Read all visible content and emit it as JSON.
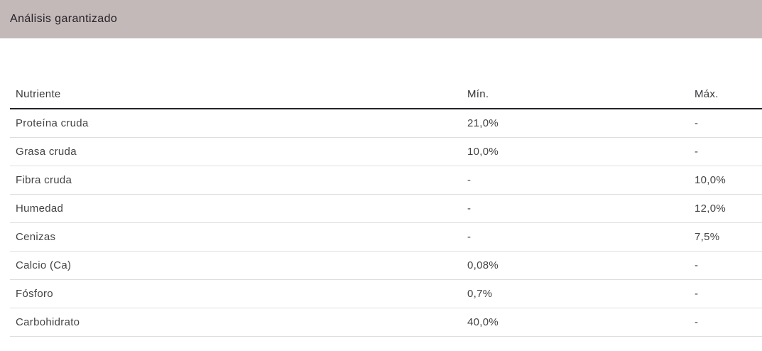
{
  "banner": {
    "title": "Análisis garantizado"
  },
  "table": {
    "columns": [
      "Nutriente",
      "Mín.",
      "Máx."
    ],
    "rows": [
      {
        "nutrient": "Proteína cruda",
        "min": "21,0%",
        "max": "-"
      },
      {
        "nutrient": "Grasa cruda",
        "min": "10,0%",
        "max": "-"
      },
      {
        "nutrient": "Fibra cruda",
        "min": "-",
        "max": "10,0%"
      },
      {
        "nutrient": "Humedad",
        "min": "-",
        "max": "12,0%"
      },
      {
        "nutrient": "Cenizas",
        "min": "-",
        "max": "7,5%"
      },
      {
        "nutrient": "Calcio (Ca)",
        "min": "0,08%",
        "max": "-"
      },
      {
        "nutrient": "Fósforo",
        "min": "0,7%",
        "max": "-"
      },
      {
        "nutrient": "Carbohidrato",
        "min": "40,0%",
        "max": "-"
      }
    ]
  },
  "colors": {
    "banner_background": "#c3b9b9",
    "header_border": "#26242a",
    "row_divider": "#dedede",
    "text": "#454344"
  }
}
